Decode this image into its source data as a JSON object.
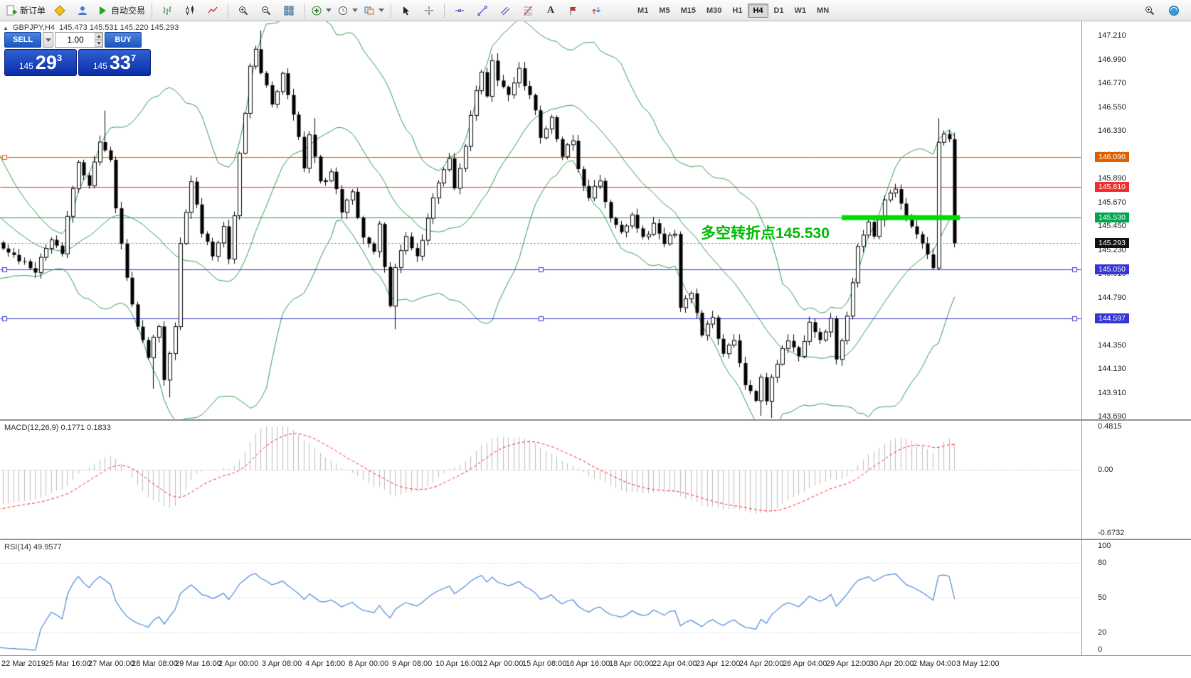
{
  "toolbar": {
    "new_order_label": "新订单",
    "autotrading_label": "自动交易",
    "timeframes": [
      "M1",
      "M5",
      "M15",
      "M30",
      "H1",
      "H4",
      "D1",
      "W1",
      "MN"
    ],
    "active_timeframe": "H4"
  },
  "chart_header": {
    "collapse_arrow": "▲",
    "symbol_text": "GBPJPY,H4",
    "ohlc_text": "145.473 145.531 145.220 145.293"
  },
  "trade_panel": {
    "sell_label": "SELL",
    "buy_label": "BUY",
    "volume_value": "1.00",
    "sell_price_prefix": "145",
    "sell_price_big": "29",
    "sell_price_sup": "3",
    "buy_price_prefix": "145",
    "buy_price_big": "33",
    "buy_price_sup": "7"
  },
  "annotation": {
    "text": "多空转折点145.530",
    "color": "#00BB00"
  },
  "price_scale": {
    "labels": [
      "147.210",
      "146.990",
      "146.770",
      "146.550",
      "146.330",
      "146.110",
      "145.890",
      "145.670",
      "145.450",
      "145.230",
      "145.010",
      "144.790",
      "144.570",
      "144.350",
      "144.130",
      "143.910",
      "143.690"
    ]
  },
  "macd_panel": {
    "label": "MACD(12,26,9) 0.1771 0.1833",
    "scale": [
      "0.4815",
      "0.00",
      "-0.6732"
    ]
  },
  "rsi_panel": {
    "label": "RSI(14) 49.9577",
    "scale": [
      "100",
      "80",
      "50",
      "20",
      "0"
    ]
  },
  "time_axis": [
    "22 Mar 2019",
    "25 Mar 16:00",
    "27 Mar 00:00",
    "28 Mar 08:00",
    "29 Mar 16:00",
    "2 Apr 00:00",
    "3 Apr 08:00",
    "4 Apr 16:00",
    "8 Apr 00:00",
    "9 Apr 08:00",
    "10 Apr 16:00",
    "12 Apr 00:00",
    "15 Apr 08:00",
    "16 Apr 16:00",
    "18 Apr 00:00",
    "22 Apr 04:00",
    "23 Apr 12:00",
    "24 Apr 20:00",
    "26 Apr 04:00",
    "29 Apr 12:00",
    "30 Apr 20:00",
    "2 May 04:00",
    "3 May 12:00"
  ],
  "chart_data": {
    "type": "candlestick",
    "symbol": "GBPJPY",
    "timeframe": "H4",
    "current_candle_ohlc": {
      "open": 145.473,
      "high": 145.531,
      "low": 145.22,
      "close": 145.293
    },
    "price_range": [
      143.664,
      147.341
    ],
    "num_candles": 178,
    "price_path": [
      [
        -34,
        147.4
      ],
      [
        -16,
        145.9
      ],
      [
        -6,
        145.25
      ],
      [
        0,
        145.32
      ],
      [
        3,
        145.18
      ],
      [
        7,
        145.05
      ],
      [
        10,
        145.35
      ],
      [
        12,
        145.22
      ],
      [
        13,
        145.55
      ],
      [
        15,
        146.05
      ],
      [
        17,
        145.8
      ],
      [
        19,
        146.25
      ],
      [
        21,
        146.05
      ],
      [
        22,
        145.6
      ],
      [
        24,
        144.95
      ],
      [
        26,
        144.55
      ],
      [
        28,
        144.25
      ],
      [
        30,
        144.55
      ],
      [
        31,
        144.05
      ],
      [
        33,
        144.5
      ],
      [
        34,
        145.3
      ],
      [
        36,
        145.85
      ],
      [
        38,
        145.4
      ],
      [
        40,
        145.2
      ],
      [
        42,
        145.45
      ],
      [
        43,
        145.15
      ],
      [
        44,
        145.55
      ],
      [
        45,
        146.1
      ],
      [
        47,
        146.9
      ],
      [
        48,
        147.1
      ],
      [
        49,
        146.85
      ],
      [
        51,
        146.6
      ],
      [
        53,
        146.85
      ],
      [
        55,
        146.5
      ],
      [
        57,
        146.0
      ],
      [
        58,
        146.3
      ],
      [
        60,
        145.85
      ],
      [
        62,
        145.95
      ],
      [
        64,
        145.6
      ],
      [
        66,
        145.75
      ],
      [
        68,
        145.35
      ],
      [
        70,
        145.2
      ],
      [
        71,
        145.45
      ],
      [
        72,
        145.1
      ],
      [
        73,
        144.7
      ],
      [
        74,
        145.05
      ],
      [
        76,
        145.35
      ],
      [
        78,
        145.15
      ],
      [
        80,
        145.55
      ],
      [
        82,
        145.85
      ],
      [
        84,
        146.05
      ],
      [
        85,
        145.8
      ],
      [
        87,
        146.2
      ],
      [
        89,
        146.7
      ],
      [
        90,
        146.9
      ],
      [
        91,
        146.65
      ],
      [
        92,
        147.0
      ],
      [
        93,
        146.8
      ],
      [
        95,
        146.65
      ],
      [
        97,
        146.9
      ],
      [
        99,
        146.65
      ],
      [
        100,
        146.5
      ],
      [
        101,
        146.25
      ],
      [
        103,
        146.45
      ],
      [
        105,
        146.1
      ],
      [
        107,
        146.25
      ],
      [
        108,
        145.95
      ],
      [
        110,
        145.7
      ],
      [
        112,
        145.9
      ],
      [
        114,
        145.5
      ],
      [
        116,
        145.4
      ],
      [
        118,
        145.55
      ],
      [
        120,
        145.35
      ],
      [
        122,
        145.45
      ],
      [
        124,
        145.3
      ],
      [
        126,
        145.4
      ],
      [
        127,
        144.7
      ],
      [
        129,
        144.85
      ],
      [
        131,
        144.45
      ],
      [
        133,
        144.6
      ],
      [
        135,
        144.25
      ],
      [
        137,
        144.4
      ],
      [
        139,
        144.0
      ],
      [
        141,
        143.82
      ],
      [
        142,
        144.05
      ],
      [
        143,
        143.85
      ],
      [
        145,
        144.2
      ],
      [
        147,
        144.4
      ],
      [
        149,
        144.25
      ],
      [
        151,
        144.55
      ],
      [
        153,
        144.4
      ],
      [
        155,
        144.6
      ],
      [
        156,
        144.2
      ],
      [
        158,
        144.6
      ],
      [
        160,
        145.25
      ],
      [
        162,
        145.5
      ],
      [
        163,
        145.35
      ],
      [
        165,
        145.7
      ],
      [
        167,
        145.8
      ],
      [
        169,
        145.5
      ],
      [
        171,
        145.4
      ],
      [
        172,
        145.3
      ],
      [
        173,
        145.2
      ],
      [
        174,
        145.05
      ],
      [
        175,
        146.2
      ],
      [
        176,
        146.3
      ],
      [
        177,
        146.25
      ],
      [
        178,
        145.293
      ]
    ],
    "wick_high_overrides": [
      [
        19,
        146.52
      ],
      [
        48,
        147.26
      ],
      [
        58,
        146.45
      ],
      [
        92,
        147.05
      ],
      [
        174,
        146.45
      ]
    ],
    "wick_low_overrides": [
      [
        28,
        143.95
      ],
      [
        31,
        143.87
      ],
      [
        73,
        144.5
      ],
      [
        141,
        143.7
      ],
      [
        143,
        143.68
      ]
    ],
    "candle_up_color": "#FFFFFF",
    "candle_down_color": "#000000",
    "bollinger": {
      "period": 20,
      "deviation": 2,
      "color": "#2E9C4F"
    },
    "levels": [
      {
        "price": 146.09,
        "color": "#E06000",
        "badge": "146.090",
        "handles": [
          "left"
        ]
      },
      {
        "price": 145.81,
        "color": "#F03030",
        "badge": "145.810",
        "handles": []
      },
      {
        "price": 145.53,
        "color": "#00A550",
        "badge": "145.530",
        "handles": []
      },
      {
        "price": 145.05,
        "color": "#3535D5",
        "badge": "145.050",
        "handles": [
          "left",
          "mid",
          "right"
        ]
      },
      {
        "price": 144.597,
        "color": "#3535D5",
        "badge": "144.597",
        "handles": [
          "left",
          "mid",
          "right"
        ]
      }
    ],
    "current_price": {
      "value": 145.293,
      "badge": "145.293",
      "color": "#111111"
    },
    "highlight_segment": {
      "price": 145.53,
      "from_index": 156,
      "to_index": 178,
      "color": "#00DC00",
      "thickness": 7
    },
    "macd": {
      "fast": 12,
      "slow": 26,
      "signal": 9,
      "range": [
        -0.6732,
        0.4815
      ],
      "histogram_color": "#BDBDBD",
      "signal_color": "#FF2222"
    },
    "rsi": {
      "period": 14,
      "color": "#4A86D8",
      "range": [
        0,
        100
      ],
      "levels": [
        80,
        50,
        20
      ]
    }
  }
}
